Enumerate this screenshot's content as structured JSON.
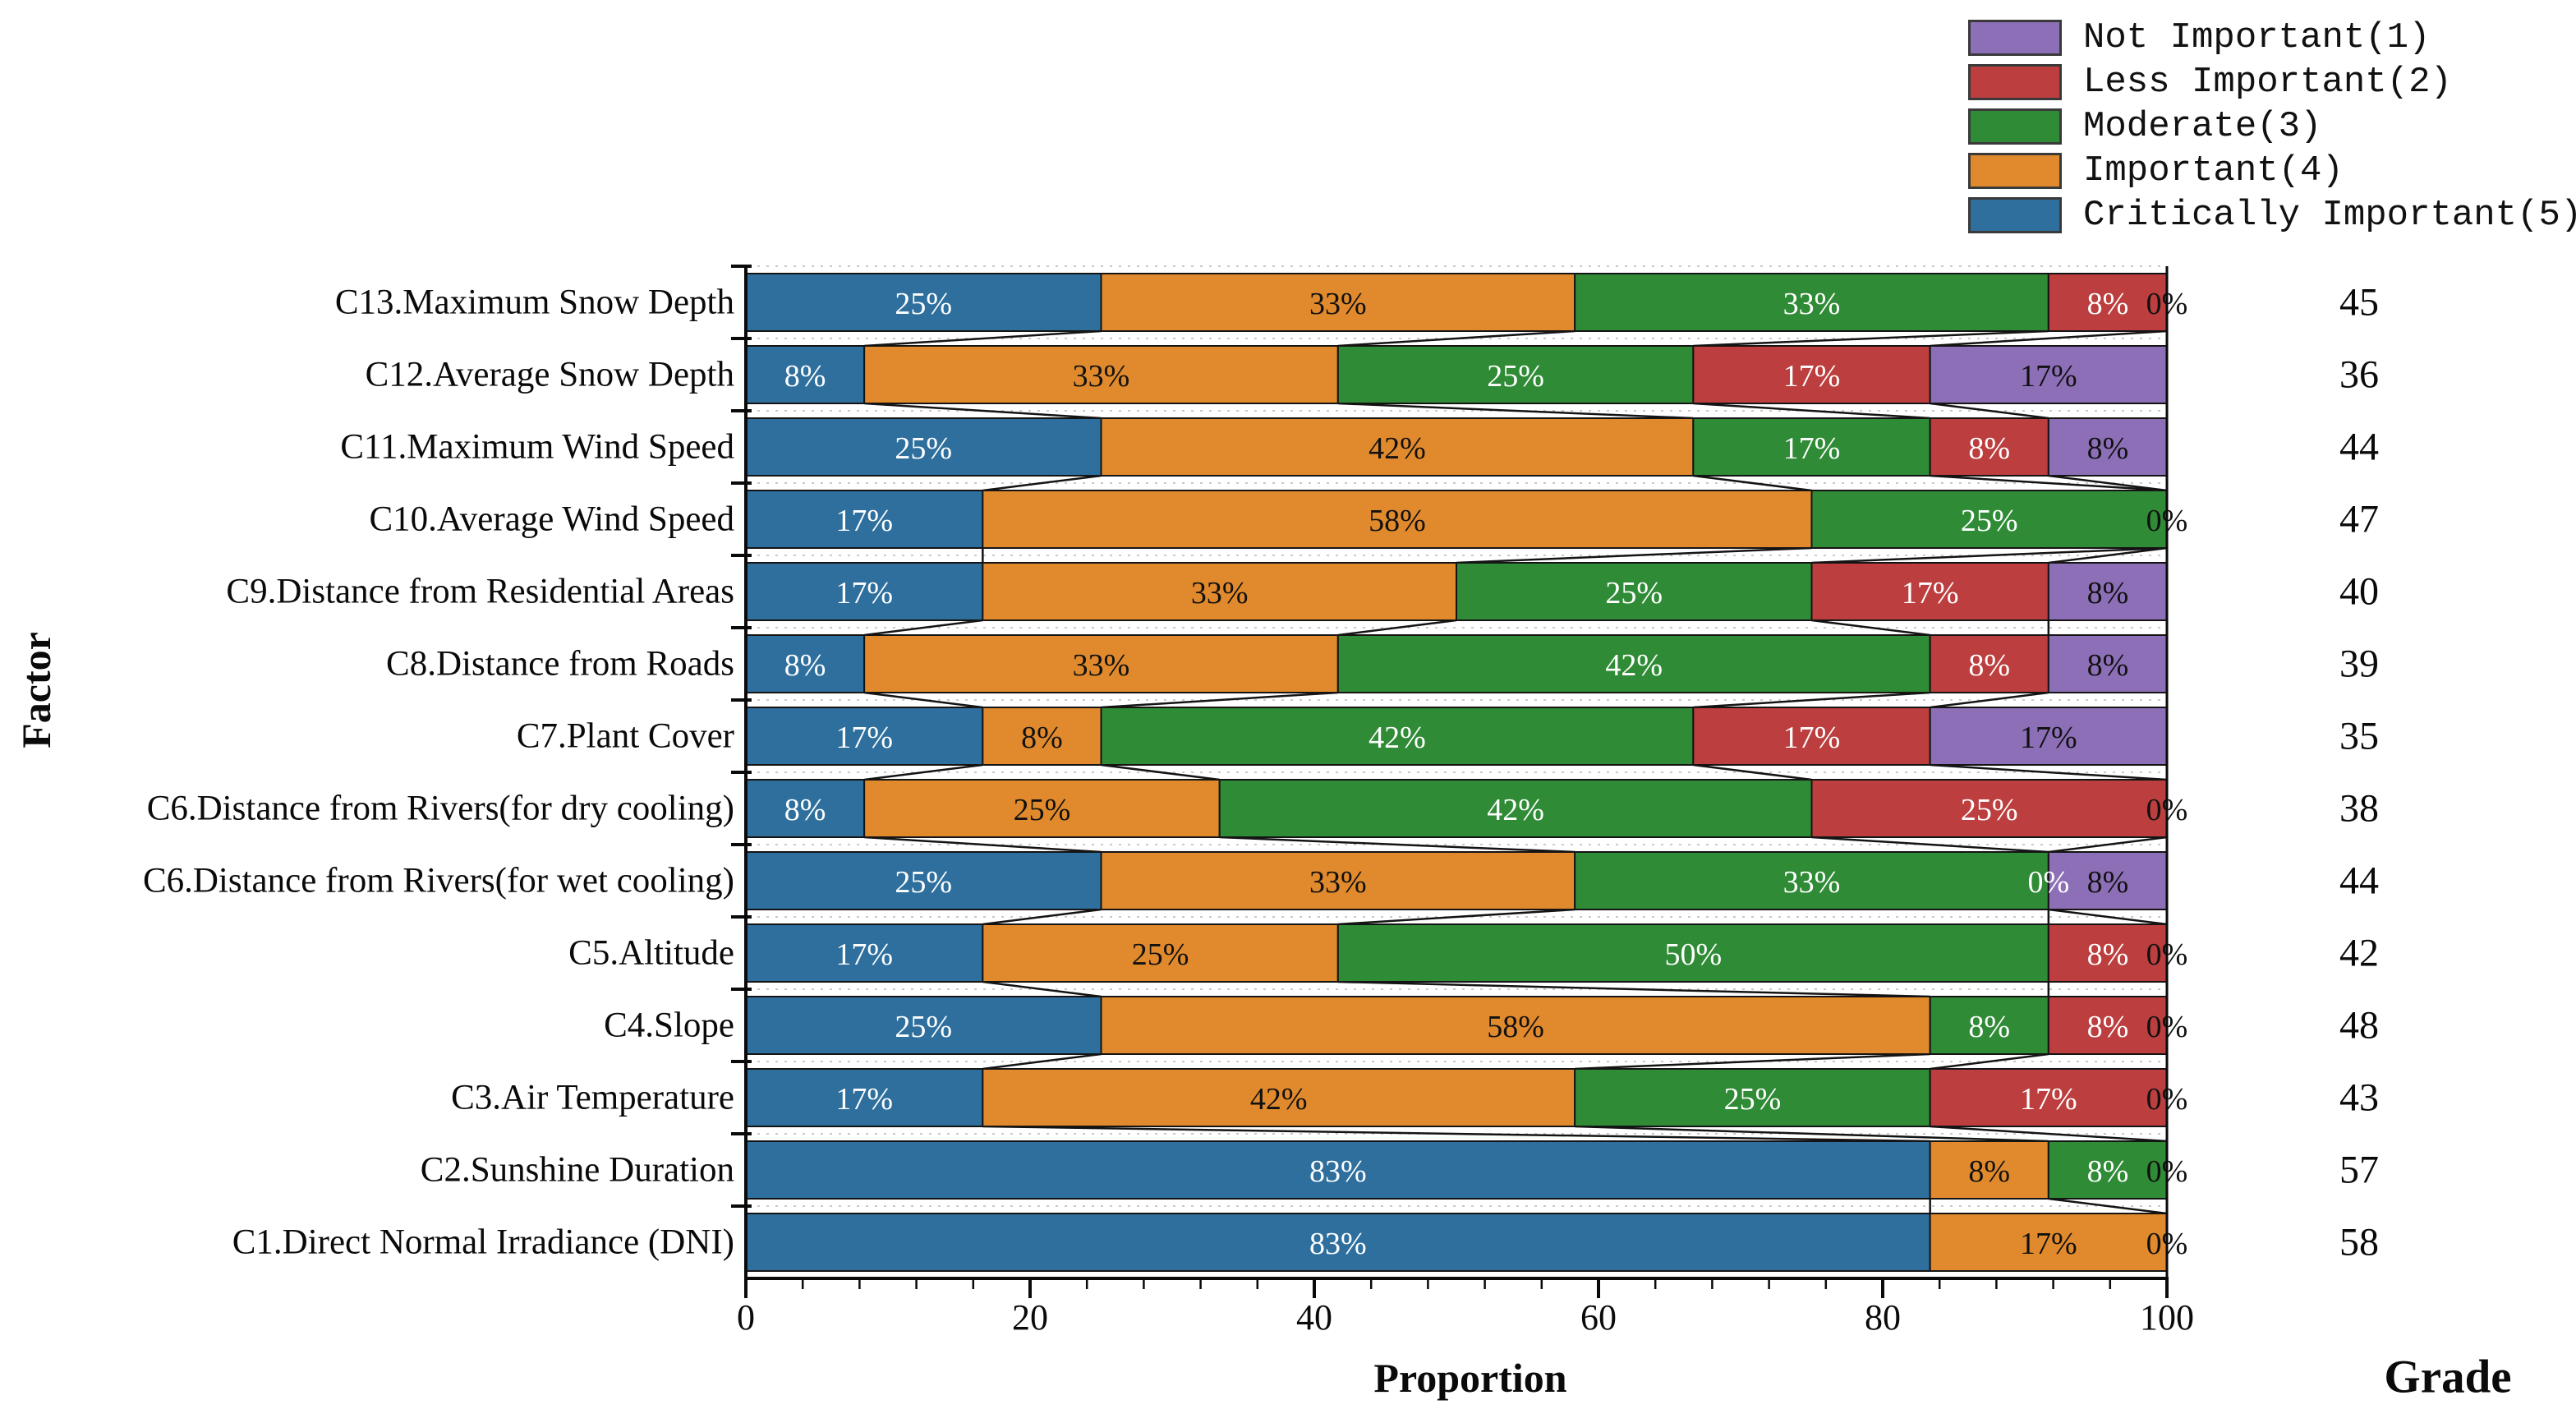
{
  "titles": {
    "x_axis": "Proportion",
    "y_axis": "Factor",
    "grade_column": "Grade"
  },
  "legend": {
    "items": [
      {
        "label": "Not Important(1)",
        "color": "#8d6fb8"
      },
      {
        "label": "Less Important(2)",
        "color": "#bc3e3e"
      },
      {
        "label": "Moderate(3)",
        "color": "#2f8b35"
      },
      {
        "label": "Important(4)",
        "color": "#e18a2d"
      },
      {
        "label": "Critically Important(5)",
        "color": "#2e6f9d"
      }
    ]
  },
  "chart_data": {
    "type": "bar",
    "orientation": "horizontal",
    "stacked": true,
    "title": "",
    "xlabel": "Proportion",
    "ylabel": "Factor",
    "xlim": [
      0,
      100
    ],
    "x_ticks": [
      0,
      20,
      40,
      60,
      80,
      100
    ],
    "x_minor_step": 4,
    "grid": false,
    "legend_position": "top-right",
    "respondent_total": 12,
    "series_order": [
      "Critically Important(5)",
      "Important(4)",
      "Moderate(3)",
      "Less Important(2)",
      "Not Important(1)"
    ],
    "series_colors": [
      "#2e6f9d",
      "#e18a2d",
      "#2f8b35",
      "#bc3e3e",
      "#8d6fb8"
    ],
    "label_text_colors": [
      "#ffffff",
      "#111111",
      "#ffffff",
      "#ffffff",
      "#111111"
    ],
    "rows": [
      {
        "factor": "C13.Maximum Snow Depth",
        "counts": [
          3,
          4,
          4,
          1,
          0
        ],
        "percent_labels": [
          "25%",
          "33%",
          "33%",
          "8%",
          "0%"
        ],
        "grade": 45
      },
      {
        "factor": "C12.Average Snow Depth",
        "counts": [
          1,
          4,
          3,
          2,
          2
        ],
        "percent_labels": [
          "8%",
          "33%",
          "25%",
          "17%",
          "17%"
        ],
        "grade": 36
      },
      {
        "factor": "C11.Maximum Wind Speed",
        "counts": [
          3,
          5,
          2,
          1,
          1
        ],
        "percent_labels": [
          "25%",
          "42%",
          "17%",
          "8%",
          "8%"
        ],
        "grade": 44
      },
      {
        "factor": "C10.Average Wind Speed",
        "counts": [
          2,
          7,
          3,
          0,
          0
        ],
        "percent_labels": [
          "17%",
          "58%",
          "25%",
          "0%",
          "0%"
        ],
        "grade": 47
      },
      {
        "factor": "C9.Distance from Residential Areas",
        "counts": [
          2,
          4,
          3,
          2,
          1
        ],
        "percent_labels": [
          "17%",
          "33%",
          "25%",
          "17%",
          "8%"
        ],
        "grade": 40
      },
      {
        "factor": "C8.Distance from Roads",
        "counts": [
          1,
          4,
          5,
          1,
          1
        ],
        "percent_labels": [
          "8%",
          "33%",
          "42%",
          "8%",
          "8%"
        ],
        "grade": 39
      },
      {
        "factor": "C7.Plant Cover",
        "counts": [
          2,
          1,
          5,
          2,
          2
        ],
        "percent_labels": [
          "17%",
          "8%",
          "42%",
          "17%",
          "17%"
        ],
        "grade": 35
      },
      {
        "factor": "C6.Distance from Rivers(for dry cooling)",
        "counts": [
          1,
          3,
          5,
          3,
          0
        ],
        "percent_labels": [
          "8%",
          "25%",
          "42%",
          "25%",
          "0%"
        ],
        "grade": 38
      },
      {
        "factor": "C6.Distance from Rivers(for wet cooling)",
        "counts": [
          3,
          4,
          4,
          0,
          1
        ],
        "percent_labels": [
          "25%",
          "33%",
          "33%",
          "0%",
          "8%"
        ],
        "grade": 44
      },
      {
        "factor": "C5.Altitude",
        "counts": [
          2,
          3,
          6,
          1,
          0
        ],
        "percent_labels": [
          "17%",
          "25%",
          "50%",
          "8%",
          "0%"
        ],
        "grade": 42
      },
      {
        "factor": "C4.Slope",
        "counts": [
          3,
          7,
          1,
          1,
          0
        ],
        "percent_labels": [
          "25%",
          "58%",
          "8%",
          "8%",
          "0%"
        ],
        "grade": 48
      },
      {
        "factor": "C3.Air Temperature",
        "counts": [
          2,
          5,
          3,
          2,
          0
        ],
        "percent_labels": [
          "17%",
          "42%",
          "25%",
          "17%",
          "0%"
        ],
        "grade": 43
      },
      {
        "factor": "C2.Sunshine Duration",
        "counts": [
          10,
          1,
          1,
          0,
          0
        ],
        "percent_labels": [
          "83%",
          "8%",
          "8%",
          "0%",
          "0%"
        ],
        "grade": 57
      },
      {
        "factor": "C1.Direct Normal Irradiance (DNI)",
        "counts": [
          10,
          2,
          0,
          0,
          0
        ],
        "percent_labels": [
          "83%",
          "17%",
          "0%",
          "0%",
          "0%"
        ],
        "grade": 58
      }
    ]
  }
}
